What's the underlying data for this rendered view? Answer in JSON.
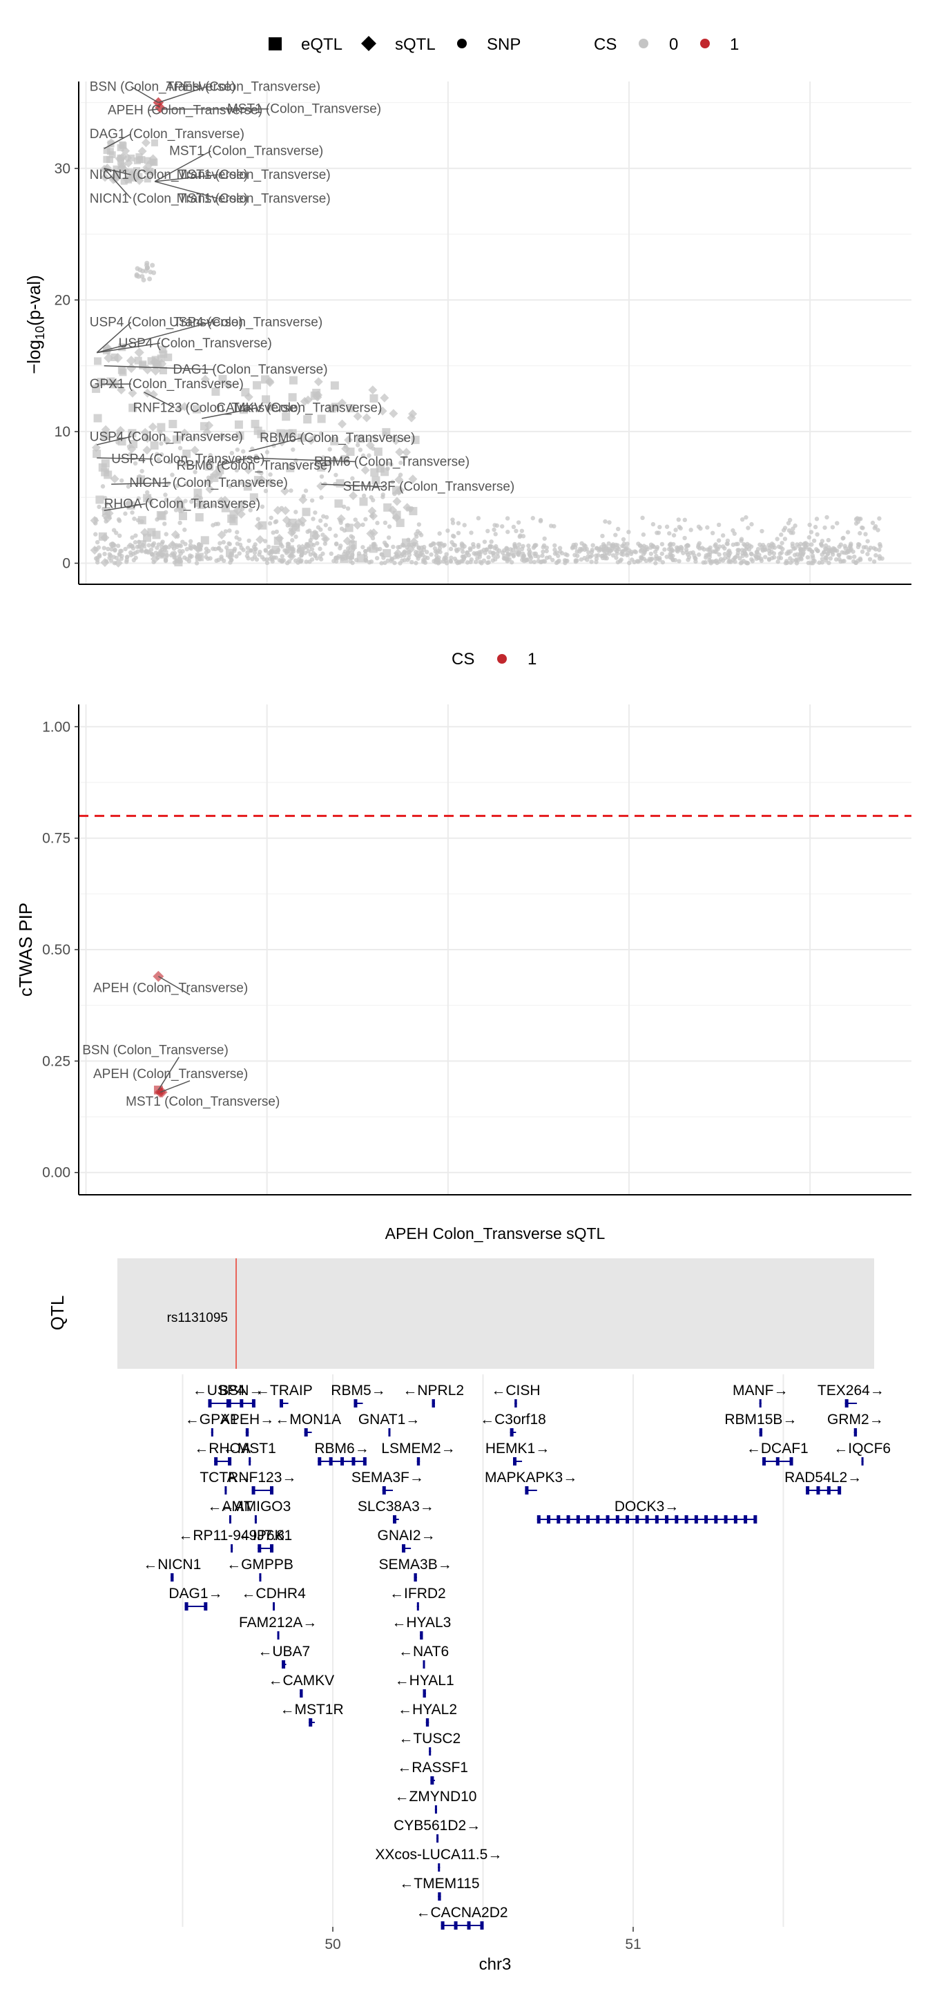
{
  "legend1": {
    "shape_eqtl": "eQTL",
    "shape_sqtl": "sQTL",
    "shape_snp": "SNP",
    "cs_title": "CS",
    "cs_0": "0",
    "cs_1": "1"
  },
  "legend2": {
    "cs_title": "CS",
    "cs_1": "1"
  },
  "colors": {
    "cs0": "#c4c4c4",
    "cs1": "#c1272d",
    "gene": "#00008b",
    "threshold": "#e41a1c",
    "qtl_line": "#e8645a",
    "panel_bg": "#e6e6e6"
  },
  "chart_data": [
    {
      "type": "scatter",
      "id": "qtl_manhattan",
      "xlabel": "",
      "ylabel": "-log10(p-val)",
      "xlim": [
        49.48,
        51.78
      ],
      "ylim": [
        -1.6,
        36.6
      ],
      "yticks": [
        0,
        10,
        20,
        30
      ],
      "xgrid": [
        49.5,
        50.0,
        50.5,
        51.0,
        51.5
      ],
      "labels": [
        {
          "text": "BSN (Colon_Transverse)",
          "x": 49.7,
          "y": 35.0,
          "lx": 49.51,
          "ly": 35.9
        },
        {
          "text": "APEH (Colon_Transverse)",
          "x": 49.7,
          "y": 35.0,
          "lx": 49.72,
          "ly": 35.9
        },
        {
          "text": "APEH (Colon_Transverse)",
          "x": 49.7,
          "y": 34.5,
          "lx": 49.56,
          "ly": 34.1
        },
        {
          "text": "MST1 (Colon_Transverse)",
          "x": 49.71,
          "y": 34.5,
          "lx": 49.89,
          "ly": 34.2
        },
        {
          "text": "DAG1 (Colon_Transverse)",
          "x": 49.55,
          "y": 31.5,
          "lx": 49.51,
          "ly": 32.3
        },
        {
          "text": "MST1 (Colon_Transverse)",
          "x": 49.69,
          "y": 29.0,
          "lx": 49.73,
          "ly": 31.0
        },
        {
          "text": "NICN1 (Colon_Transverse)",
          "x": 49.55,
          "y": 30.0,
          "lx": 49.51,
          "ly": 29.2
        },
        {
          "text": "MST1 (Colon_Transverse)",
          "x": 49.69,
          "y": 29.0,
          "lx": 49.75,
          "ly": 29.2
        },
        {
          "text": "NICN1 (Colon_Transverse)",
          "x": 49.55,
          "y": 30.0,
          "lx": 49.51,
          "ly": 27.4
        },
        {
          "text": "MST1 (Colon_Transverse)",
          "x": 49.69,
          "y": 29.0,
          "lx": 49.75,
          "ly": 27.4
        },
        {
          "text": "USP4 (Colon_Transverse)",
          "x": 49.53,
          "y": 16.0,
          "lx": 49.51,
          "ly": 18.0
        },
        {
          "text": "USP4 (Colon_Transverse)",
          "x": 49.53,
          "y": 16.0,
          "lx": 49.73,
          "ly": 18.0
        },
        {
          "text": "USP4 (Colon_Transverse)",
          "x": 49.53,
          "y": 16.0,
          "lx": 49.59,
          "ly": 16.4
        },
        {
          "text": "DAG1 (Colon_Transverse)",
          "x": 49.55,
          "y": 15.0,
          "lx": 49.74,
          "ly": 14.4
        },
        {
          "text": "GPX1 (Colon_Transverse)",
          "x": 49.55,
          "y": 13.6,
          "lx": 49.51,
          "ly": 13.3
        },
        {
          "text": "RNF123 (Colon_Transverse)",
          "x": 49.66,
          "y": 13.0,
          "lx": 49.63,
          "ly": 11.5
        },
        {
          "text": "CAMKV (Colon_Transverse)",
          "x": 49.82,
          "y": 11.0,
          "lx": 49.86,
          "ly": 11.5
        },
        {
          "text": "USP4 (Colon_Transverse)",
          "x": 49.53,
          "y": 9.0,
          "lx": 49.51,
          "ly": 9.3
        },
        {
          "text": "RBM6 (Colon_Transverse)",
          "x": 49.95,
          "y": 8.5,
          "lx": 49.98,
          "ly": 9.2
        },
        {
          "text": "USP4 (Colon_Transverse)",
          "x": 49.53,
          "y": 8.0,
          "lx": 49.57,
          "ly": 7.6
        },
        {
          "text": "RBM6 (Colon_Transverse)",
          "x": 49.95,
          "y": 8.0,
          "lx": 50.13,
          "ly": 7.4
        },
        {
          "text": "RBM6 (Colon_Transverse)",
          "x": 49.95,
          "y": 8.0,
          "lx": 49.75,
          "ly": 7.1
        },
        {
          "text": "NICN1 (Colon_Transverse)",
          "x": 49.57,
          "y": 6.0,
          "lx": 49.62,
          "ly": 5.8
        },
        {
          "text": "SEMA3F (Colon_Transverse)",
          "x": 50.15,
          "y": 6.0,
          "lx": 50.21,
          "ly": 5.5
        },
        {
          "text": "RHOA (Colon_Transverse)",
          "x": 49.55,
          "y": 4.0,
          "lx": 49.55,
          "ly": 4.2
        }
      ]
    },
    {
      "type": "scatter",
      "id": "ctwas_pip",
      "xlabel": "",
      "ylabel": "cTWAS PIP",
      "xlim": [
        49.48,
        51.78
      ],
      "ylim": [
        -0.05,
        1.05
      ],
      "yticks": [
        0.0,
        0.25,
        0.5,
        0.75,
        1.0
      ],
      "ytick_labels": [
        "0.00",
        "0.25",
        "0.50",
        "0.75",
        "1.00"
      ],
      "threshold": 0.8,
      "points": [
        {
          "x": 49.7,
          "y": 0.44,
          "shape": "diamond",
          "cs": 1
        },
        {
          "x": 49.7,
          "y": 0.185,
          "shape": "square",
          "cs": 1
        },
        {
          "x": 49.705,
          "y": 0.18,
          "shape": "diamond",
          "cs": 1
        },
        {
          "x": 49.71,
          "y": 0.18,
          "shape": "diamond",
          "cs": 1
        }
      ],
      "labels": [
        {
          "text": "APEH (Colon_Transverse)",
          "x": 49.7,
          "y": 0.44,
          "lx": 49.52,
          "ly": 0.405
        },
        {
          "text": "BSN (Colon_Transverse)",
          "x": 49.7,
          "y": 0.185,
          "lx": 49.49,
          "ly": 0.265
        },
        {
          "text": "APEH (Colon_Transverse)",
          "x": 49.705,
          "y": 0.18,
          "lx": 49.52,
          "ly": 0.212
        },
        {
          "text": "MST1 (Colon_Transverse)",
          "x": 49.71,
          "y": 0.18,
          "lx": 49.61,
          "ly": 0.15
        }
      ]
    }
  ],
  "track": {
    "title": "APEH Colon_Transverse sQTL",
    "ylabel": "QTL",
    "snp_label": "rs1131095",
    "snp_pos": 49.71
  },
  "genes_axis": {
    "xlabel": "chr3",
    "ticks": [
      50,
      51
    ],
    "tick_labels": [
      "50",
      "51"
    ]
  },
  "genes": [
    {
      "label": "←USP4",
      "start": 49.585,
      "end": 49.655,
      "row": 0
    },
    {
      "label": "BSN→",
      "start": 49.65,
      "end": 49.74,
      "row": 0
    },
    {
      "label": "←TRAIP",
      "start": 49.823,
      "end": 49.852,
      "row": 0
    },
    {
      "label": "RBM5→",
      "start": 50.07,
      "end": 50.1,
      "row": 0
    },
    {
      "label": "←NPRL2",
      "start": 50.33,
      "end": 50.34,
      "row": 0
    },
    {
      "label": "←CISH",
      "start": 50.605,
      "end": 50.613,
      "row": 0
    },
    {
      "label": "MANF→",
      "start": 51.42,
      "end": 51.427,
      "row": 0
    },
    {
      "label": "TEX264→",
      "start": 51.705,
      "end": 51.745,
      "row": 0
    },
    {
      "label": "←GPX1",
      "start": 49.595,
      "end": 49.597,
      "row": 1
    },
    {
      "label": "APEH→",
      "start": 49.71,
      "end": 49.72,
      "row": 1
    },
    {
      "label": "←MON1A",
      "start": 49.905,
      "end": 49.93,
      "row": 1
    },
    {
      "label": "GNAT1→",
      "start": 50.185,
      "end": 50.19,
      "row": 1
    },
    {
      "label": "←C3orf18",
      "start": 50.59,
      "end": 50.61,
      "row": 1
    },
    {
      "label": "RBM15B→",
      "start": 51.42,
      "end": 51.43,
      "row": 1
    },
    {
      "label": "GRM2→",
      "start": 51.735,
      "end": 51.745,
      "row": 1
    },
    {
      "label": "←RHOA",
      "start": 49.605,
      "end": 49.66,
      "row": 2
    },
    {
      "label": "←MST1",
      "start": 49.72,
      "end": 49.725,
      "row": 2
    },
    {
      "label": "RBM6→",
      "start": 49.95,
      "end": 50.11,
      "row": 2
    },
    {
      "label": "LSMEM2→",
      "start": 50.28,
      "end": 50.29,
      "row": 2
    },
    {
      "label": "HEMK1→",
      "start": 50.6,
      "end": 50.63,
      "row": 2
    },
    {
      "label": "←DCAF1",
      "start": 51.43,
      "end": 51.53,
      "row": 2
    },
    {
      "label": "←IQCF6",
      "start": 51.76,
      "end": 51.765,
      "row": 2
    },
    {
      "label": "TCTA→",
      "start": 49.64,
      "end": 49.645,
      "row": 3
    },
    {
      "label": "RNF123→",
      "start": 49.73,
      "end": 49.8,
      "row": 3
    },
    {
      "label": "SEMA3F→",
      "start": 50.165,
      "end": 50.2,
      "row": 3
    },
    {
      "label": "MAPKAPK3→",
      "start": 50.64,
      "end": 50.68,
      "row": 3
    },
    {
      "label": "RAD54L2→",
      "start": 51.575,
      "end": 51.69,
      "row": 3
    },
    {
      "label": "←AMT",
      "start": 49.655,
      "end": 49.66,
      "row": 4
    },
    {
      "label": "←AMIGO3",
      "start": 49.74,
      "end": 49.745,
      "row": 4
    },
    {
      "label": "SLC38A3→",
      "start": 50.2,
      "end": 50.22,
      "row": 4
    },
    {
      "label": "DOCK3→",
      "start": 50.68,
      "end": 51.41,
      "row": 4
    },
    {
      "label": "←RP11-949J7.8",
      "start": 49.66,
      "end": 49.665,
      "row": 5
    },
    {
      "label": "←IP6K1",
      "start": 49.75,
      "end": 49.8,
      "row": 5
    },
    {
      "label": "GNAI2→",
      "start": 50.23,
      "end": 50.26,
      "row": 5
    },
    {
      "label": "←NICN1",
      "start": 49.46,
      "end": 49.47,
      "row": 6
    },
    {
      "label": "←GMPPB",
      "start": 49.755,
      "end": 49.76,
      "row": 6
    },
    {
      "label": "SEMA3B→",
      "start": 50.27,
      "end": 50.28,
      "row": 6
    },
    {
      "label": "DAG1→",
      "start": 49.507,
      "end": 49.58,
      "row": 7
    },
    {
      "label": "←CDHR4",
      "start": 49.8,
      "end": 49.805,
      "row": 7
    },
    {
      "label": "←IFRD2",
      "start": 50.28,
      "end": 50.285,
      "row": 7
    },
    {
      "label": "FAM212A→",
      "start": 49.815,
      "end": 49.82,
      "row": 8
    },
    {
      "label": "←HYAL3",
      "start": 50.29,
      "end": 50.3,
      "row": 8
    },
    {
      "label": "←UBA7",
      "start": 49.83,
      "end": 49.845,
      "row": 9
    },
    {
      "label": "←NAT6",
      "start": 50.3,
      "end": 50.305,
      "row": 9
    },
    {
      "label": "←CAMKV",
      "start": 49.89,
      "end": 49.9,
      "row": 10
    },
    {
      "label": "←HYAL1",
      "start": 50.3,
      "end": 50.31,
      "row": 10
    },
    {
      "label": "←MST1R",
      "start": 49.92,
      "end": 49.94,
      "row": 11
    },
    {
      "label": "←HYAL2",
      "start": 50.31,
      "end": 50.32,
      "row": 11
    },
    {
      "label": "←TUSC2",
      "start": 50.32,
      "end": 50.325,
      "row": 12
    },
    {
      "label": "←RASSF1",
      "start": 50.325,
      "end": 50.34,
      "row": 13
    },
    {
      "label": "←ZMYND10",
      "start": 50.34,
      "end": 50.345,
      "row": 14
    },
    {
      "label": "CYB561D2→",
      "start": 50.345,
      "end": 50.35,
      "row": 15
    },
    {
      "label": "XXcos-LUCA11.5→",
      "start": 50.35,
      "end": 50.355,
      "row": 16
    },
    {
      "label": "←TMEM115",
      "start": 50.35,
      "end": 50.36,
      "row": 17
    },
    {
      "label": "←CACNA2D2",
      "start": 50.36,
      "end": 50.5,
      "row": 18
    }
  ]
}
